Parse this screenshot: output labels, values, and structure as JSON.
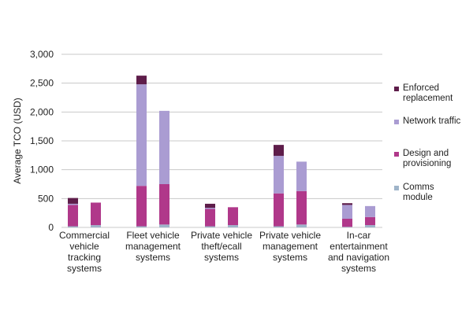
{
  "chart_data": {
    "type": "stacked_bar",
    "y_label": "Average TCO (USD)",
    "categories": [
      "Commercial\nvehicle\ntracking\nsystems",
      null,
      "Fleet vehicle\nmanagement\nsystems",
      null,
      "Private vehicle\ntheft/ecall\nsystems",
      null,
      "Private vehicle\nmanagement\nsystems",
      null,
      "In-car\nentertainment\nand navigation\nsystems",
      null
    ],
    "series": [
      {
        "name": "Comms\nmodule",
        "color": "#9fb4c9",
        "values": [
          20,
          40,
          20,
          50,
          20,
          40,
          20,
          50,
          10,
          40
        ]
      },
      {
        "name": "Design and\nprovisioning",
        "color": "#b0388a",
        "values": [
          370,
          390,
          700,
          700,
          300,
          310,
          570,
          580,
          140,
          140
        ]
      },
      {
        "name": "Network traffic",
        "color": "#aa9cd2",
        "values": [
          20,
          0,
          1760,
          1270,
          20,
          0,
          650,
          510,
          240,
          190
        ]
      },
      {
        "name": "Enforced\nreplacement",
        "color": "#5e1d4a",
        "values": [
          100,
          0,
          150,
          0,
          70,
          0,
          190,
          0,
          30,
          0
        ]
      }
    ],
    "ylim": [
      0,
      3000
    ],
    "yticks": [
      0,
      500,
      {
        "value": 1000,
        "label": "1,000"
      },
      {
        "value": 1500,
        "label": "1,500"
      },
      {
        "value": 2000,
        "label": "2,000"
      },
      {
        "value": 2500,
        "label": "2,500"
      },
      {
        "value": 3000,
        "label": "3,000"
      }
    ],
    "grid": true,
    "legend": "right"
  }
}
